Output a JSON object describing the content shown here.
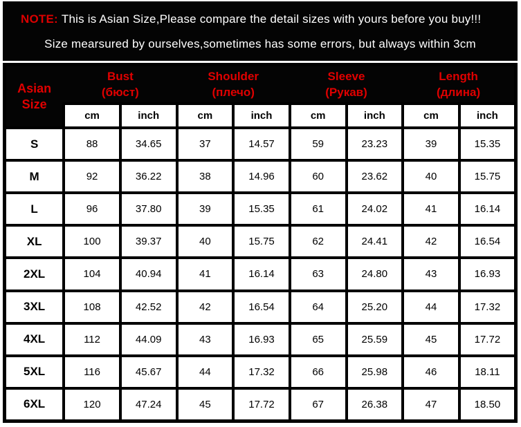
{
  "note": {
    "prefix": "NOTE:",
    "line1": "This is Asian Size,Please compare the detail sizes with yours before you buy!!!",
    "line2": "Size mearsured by ourselves,sometimes has some errors, but always within 3cm"
  },
  "colors": {
    "background_black": "#040404",
    "accent_red": "#dc0000",
    "cell_white": "#ffffff",
    "text_black": "#000000",
    "text_white": "#ffffff"
  },
  "table": {
    "corner": {
      "line1": "Asian",
      "line2": "Size"
    },
    "groups": [
      {
        "en": "Bust",
        "ru": "(бюст)"
      },
      {
        "en": "Shoulder",
        "ru": "(плечо)"
      },
      {
        "en": "Sleeve",
        "ru": "(Рукав)"
      },
      {
        "en": "Length",
        "ru": "(длина)"
      }
    ],
    "units": [
      "cm",
      "inch",
      "cm",
      "inch",
      "cm",
      "inch",
      "cm",
      "inch"
    ],
    "rows": [
      {
        "size": "S",
        "values": [
          "88",
          "34.65",
          "37",
          "14.57",
          "59",
          "23.23",
          "39",
          "15.35"
        ]
      },
      {
        "size": "M",
        "values": [
          "92",
          "36.22",
          "38",
          "14.96",
          "60",
          "23.62",
          "40",
          "15.75"
        ]
      },
      {
        "size": "L",
        "values": [
          "96",
          "37.80",
          "39",
          "15.35",
          "61",
          "24.02",
          "41",
          "16.14"
        ]
      },
      {
        "size": "XL",
        "values": [
          "100",
          "39.37",
          "40",
          "15.75",
          "62",
          "24.41",
          "42",
          "16.54"
        ]
      },
      {
        "size": "2XL",
        "values": [
          "104",
          "40.94",
          "41",
          "16.14",
          "63",
          "24.80",
          "43",
          "16.93"
        ]
      },
      {
        "size": "3XL",
        "values": [
          "108",
          "42.52",
          "42",
          "16.54",
          "64",
          "25.20",
          "44",
          "17.32"
        ]
      },
      {
        "size": "4XL",
        "values": [
          "112",
          "44.09",
          "43",
          "16.93",
          "65",
          "25.59",
          "45",
          "17.72"
        ]
      },
      {
        "size": "5XL",
        "values": [
          "116",
          "45.67",
          "44",
          "17.32",
          "66",
          "25.98",
          "46",
          "18.11"
        ]
      },
      {
        "size": "6XL",
        "values": [
          "120",
          "47.24",
          "45",
          "17.72",
          "67",
          "26.38",
          "47",
          "18.50"
        ]
      }
    ]
  },
  "chart_data": {
    "type": "table",
    "title": "Asian Size chart (Bust / Shoulder / Sleeve / Length in cm and inch)",
    "columns": [
      "Asian Size",
      "Bust cm",
      "Bust inch",
      "Shoulder cm",
      "Shoulder inch",
      "Sleeve cm",
      "Sleeve inch",
      "Length cm",
      "Length inch"
    ],
    "rows": [
      [
        "S",
        88,
        34.65,
        37,
        14.57,
        59,
        23.23,
        39,
        15.35
      ],
      [
        "M",
        92,
        36.22,
        38,
        14.96,
        60,
        23.62,
        40,
        15.75
      ],
      [
        "L",
        96,
        37.8,
        39,
        15.35,
        61,
        24.02,
        41,
        16.14
      ],
      [
        "XL",
        100,
        39.37,
        40,
        15.75,
        62,
        24.41,
        42,
        16.54
      ],
      [
        "2XL",
        104,
        40.94,
        41,
        16.14,
        63,
        24.8,
        43,
        16.93
      ],
      [
        "3XL",
        108,
        42.52,
        42,
        16.54,
        64,
        25.2,
        44,
        17.32
      ],
      [
        "4XL",
        112,
        44.09,
        43,
        16.93,
        65,
        25.59,
        45,
        17.72
      ],
      [
        "5XL",
        116,
        45.67,
        44,
        17.32,
        66,
        25.98,
        46,
        18.11
      ],
      [
        "6XL",
        120,
        47.24,
        45,
        17.72,
        67,
        26.38,
        47,
        18.5
      ]
    ]
  }
}
